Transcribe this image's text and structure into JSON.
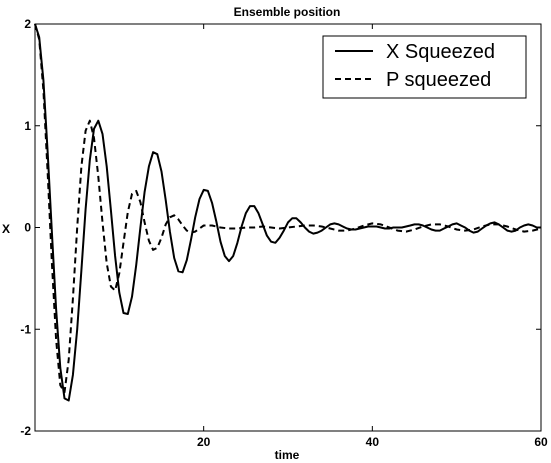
{
  "chart_data": {
    "type": "line",
    "title": "Ensemble position",
    "xlabel": "time",
    "ylabel": "X",
    "xlim": [
      0,
      60
    ],
    "ylim": [
      -2,
      2
    ],
    "xticks": [
      20,
      40,
      60
    ],
    "yticks": [
      -2,
      -1,
      0,
      1,
      2
    ],
    "grid": false,
    "legend_position": "top-right",
    "series": [
      {
        "name": "X Squeezed",
        "style": "solid",
        "color": "#000000",
        "x": [
          0,
          0.5,
          1,
          1.5,
          2,
          2.5,
          3,
          3.5,
          4,
          4.5,
          5,
          5.5,
          6,
          6.5,
          7,
          7.5,
          8,
          8.5,
          9,
          9.5,
          10,
          10.5,
          11,
          11.5,
          12,
          12.5,
          13,
          13.5,
          14,
          14.5,
          15,
          15.5,
          16,
          16.5,
          17,
          17.5,
          18,
          18.5,
          19,
          19.5,
          20,
          20.5,
          21,
          21.5,
          22,
          22.5,
          23,
          23.5,
          24,
          24.5,
          25,
          25.5,
          26,
          26.5,
          27,
          27.5,
          28,
          28.5,
          29,
          29.5,
          30,
          30.5,
          31,
          31.5,
          32,
          32.5,
          33,
          33.5,
          34,
          34.5,
          35,
          35.5,
          36,
          36.5,
          37,
          37.5,
          38,
          38.5,
          39,
          39.5,
          40,
          40.5,
          41,
          41.5,
          42,
          42.5,
          43,
          43.5,
          44,
          44.5,
          45,
          45.5,
          46,
          46.5,
          47,
          47.5,
          48,
          48.5,
          49,
          49.5,
          50,
          50.5,
          51,
          51.5,
          52,
          52.5,
          53,
          53.5,
          54,
          54.5,
          55,
          55.5,
          56,
          56.5,
          57,
          57.5,
          58,
          58.5,
          59,
          59.5,
          60
        ],
        "y": [
          2.0,
          1.87,
          1.45,
          0.75,
          -0.05,
          -0.8,
          -1.38,
          -1.68,
          -1.7,
          -1.45,
          -1.0,
          -0.42,
          0.18,
          0.66,
          0.97,
          1.05,
          0.92,
          0.6,
          0.17,
          -0.28,
          -0.64,
          -0.84,
          -0.85,
          -0.68,
          -0.37,
          0.0,
          0.35,
          0.6,
          0.74,
          0.72,
          0.55,
          0.27,
          -0.04,
          -0.3,
          -0.43,
          -0.44,
          -0.32,
          -0.12,
          0.1,
          0.28,
          0.37,
          0.36,
          0.24,
          0.06,
          -0.14,
          -0.28,
          -0.33,
          -0.28,
          -0.15,
          0.01,
          0.14,
          0.21,
          0.21,
          0.14,
          0.03,
          -0.08,
          -0.14,
          -0.15,
          -0.1,
          -0.03,
          0.05,
          0.09,
          0.09,
          0.05,
          0.0,
          -0.04,
          -0.06,
          -0.05,
          -0.03,
          0.0,
          0.03,
          0.04,
          0.03,
          0.01,
          -0.01,
          -0.02,
          -0.02,
          -0.01,
          0.0,
          0.01,
          0.01,
          0.01,
          0.0,
          -0.01,
          -0.01,
          0.0,
          0.0,
          0.0,
          0.01,
          0.02,
          0.03,
          0.03,
          0.02,
          0.0,
          -0.02,
          -0.03,
          -0.03,
          -0.01,
          0.01,
          0.03,
          0.04,
          0.02,
          0.0,
          -0.03,
          -0.05,
          -0.04,
          -0.01,
          0.02,
          0.04,
          0.05,
          0.03,
          0.0,
          -0.03,
          -0.04,
          -0.03,
          0.0,
          0.02,
          0.03,
          0.02,
          0.0,
          0.0
        ]
      },
      {
        "name": "P squeezed",
        "style": "dashed",
        "color": "#000000",
        "x": [
          0,
          0.5,
          1,
          1.5,
          2,
          2.5,
          3,
          3.5,
          4,
          4.5,
          5,
          5.5,
          6,
          6.5,
          7,
          7.5,
          8,
          8.5,
          9,
          9.5,
          10,
          10.5,
          11,
          11.5,
          12,
          12.5,
          13,
          13.5,
          14,
          14.5,
          15,
          15.5,
          16,
          16.5,
          17,
          17.5,
          18,
          18.5,
          19,
          19.5,
          20,
          21,
          22,
          23,
          24,
          25,
          26,
          27,
          28,
          29,
          30,
          31,
          32,
          33,
          34,
          35,
          36,
          37,
          38,
          39,
          40,
          41,
          42,
          43,
          44,
          45,
          46,
          47,
          48,
          49,
          50,
          51,
          52,
          53,
          54,
          55,
          56,
          57,
          58,
          59,
          60
        ],
        "y": [
          2.0,
          1.85,
          1.35,
          0.55,
          -0.35,
          -1.1,
          -1.55,
          -1.62,
          -1.3,
          -0.7,
          0.0,
          0.6,
          0.95,
          1.05,
          0.88,
          0.5,
          0.05,
          -0.35,
          -0.58,
          -0.62,
          -0.45,
          -0.15,
          0.15,
          0.33,
          0.36,
          0.25,
          0.05,
          -0.13,
          -0.22,
          -0.2,
          -0.1,
          0.03,
          0.1,
          0.12,
          0.08,
          0.02,
          -0.03,
          -0.05,
          -0.04,
          -0.01,
          0.02,
          0.02,
          0.0,
          -0.01,
          -0.01,
          0.0,
          0.0,
          0.01,
          0.0,
          -0.01,
          0.0,
          0.01,
          0.02,
          0.02,
          0.01,
          -0.01,
          -0.03,
          -0.03,
          -0.01,
          0.02,
          0.04,
          0.03,
          0.0,
          -0.03,
          -0.04,
          -0.02,
          0.01,
          0.03,
          0.03,
          0.01,
          -0.02,
          -0.03,
          -0.02,
          0.01,
          0.03,
          0.03,
          0.01,
          -0.02,
          -0.04,
          -0.03,
          -0.01
        ]
      }
    ]
  }
}
